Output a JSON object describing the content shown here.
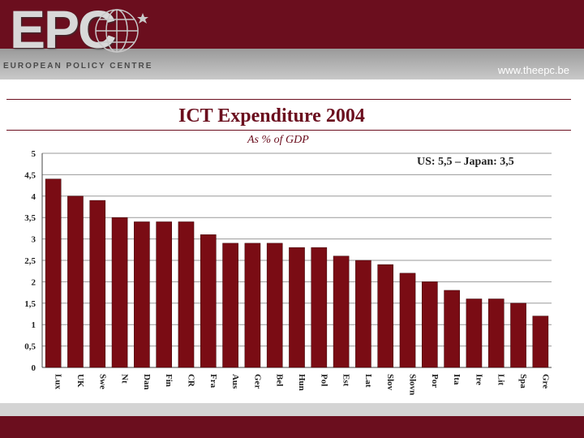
{
  "header": {
    "logo_text": "EPC",
    "tagline": "EUROPEAN POLICY CENTRE",
    "url": "www.theepc.be"
  },
  "colors": {
    "brand": "#6b0e1e",
    "bar": "#7a0c14"
  },
  "chart_data": {
    "type": "bar",
    "title": "ICT Expenditure 2004",
    "subtitle": "As % of GDP",
    "annotation": "US: 5,5 – Japan: 3,5",
    "categories": [
      "Lux",
      "UK",
      "Swe",
      "Nt",
      "Dan",
      "Fin",
      "CR",
      "Fra",
      "Aus",
      "Ger",
      "Bel",
      "Hun",
      "Pol",
      "Est",
      "Lat",
      "Slov",
      "Slovn",
      "Por",
      "Ita",
      "Ire",
      "Lit",
      "Spa",
      "Gre"
    ],
    "values": [
      4.4,
      4.0,
      3.9,
      3.5,
      3.4,
      3.4,
      3.4,
      3.1,
      2.9,
      2.9,
      2.9,
      2.8,
      2.8,
      2.6,
      2.5,
      2.4,
      2.2,
      2.0,
      1.8,
      1.6,
      1.6,
      1.5,
      1.2
    ],
    "ylim": [
      0,
      5
    ],
    "yticks": [
      "0",
      "0,5",
      "1",
      "1,5",
      "2",
      "2,5",
      "3",
      "3,5",
      "4",
      "4,5",
      "5"
    ],
    "grid": true
  }
}
